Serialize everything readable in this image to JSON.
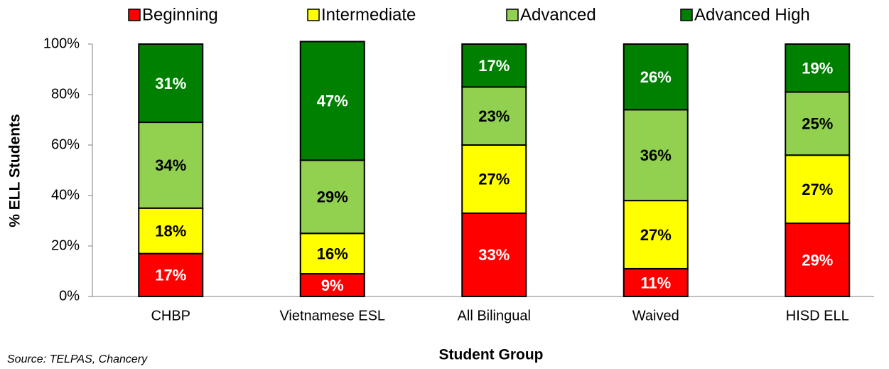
{
  "chart_data": {
    "type": "stacked_bar",
    "x_label": "Student Group",
    "y_label": "% ELL Students",
    "source": "Source: TELPAS, Chancery",
    "categories": [
      "CHBP",
      "Vietnamese ESL",
      "All Bilingual",
      "Waived",
      "HISD ELL"
    ],
    "series": [
      {
        "name": "Beginning",
        "color": "#ff0000",
        "label_color": "#ffffff",
        "values": [
          17,
          9,
          33,
          11,
          29
        ],
        "value_labels": [
          "17%",
          "9%",
          "33%",
          "11%",
          "29%"
        ]
      },
      {
        "name": "Intermediate",
        "color": "#ffff00",
        "label_color": "#000000",
        "values": [
          18,
          16,
          27,
          27,
          27
        ],
        "value_labels": [
          "18%",
          "16%",
          "27%",
          "27%",
          "27%"
        ]
      },
      {
        "name": "Advanced",
        "color": "#92d050",
        "label_color": "#000000",
        "values": [
          34,
          29,
          23,
          36,
          25
        ],
        "value_labels": [
          "34%",
          "29%",
          "23%",
          "36%",
          "25%"
        ]
      },
      {
        "name": "Advanced High",
        "color": "#008000",
        "label_color": "#ffffff",
        "values": [
          31,
          47,
          17,
          26,
          19
        ],
        "value_labels": [
          "31%",
          "47%",
          "17%",
          "26%",
          "19%"
        ]
      }
    ],
    "ylim": [
      0,
      100
    ],
    "yticks": [
      {
        "value": 0,
        "label": "0%"
      },
      {
        "value": 20,
        "label": "20%"
      },
      {
        "value": 40,
        "label": "40%"
      },
      {
        "value": 60,
        "label": "60%"
      },
      {
        "value": 80,
        "label": "80%"
      },
      {
        "value": 100,
        "label": "100%"
      }
    ],
    "legend": "top"
  }
}
